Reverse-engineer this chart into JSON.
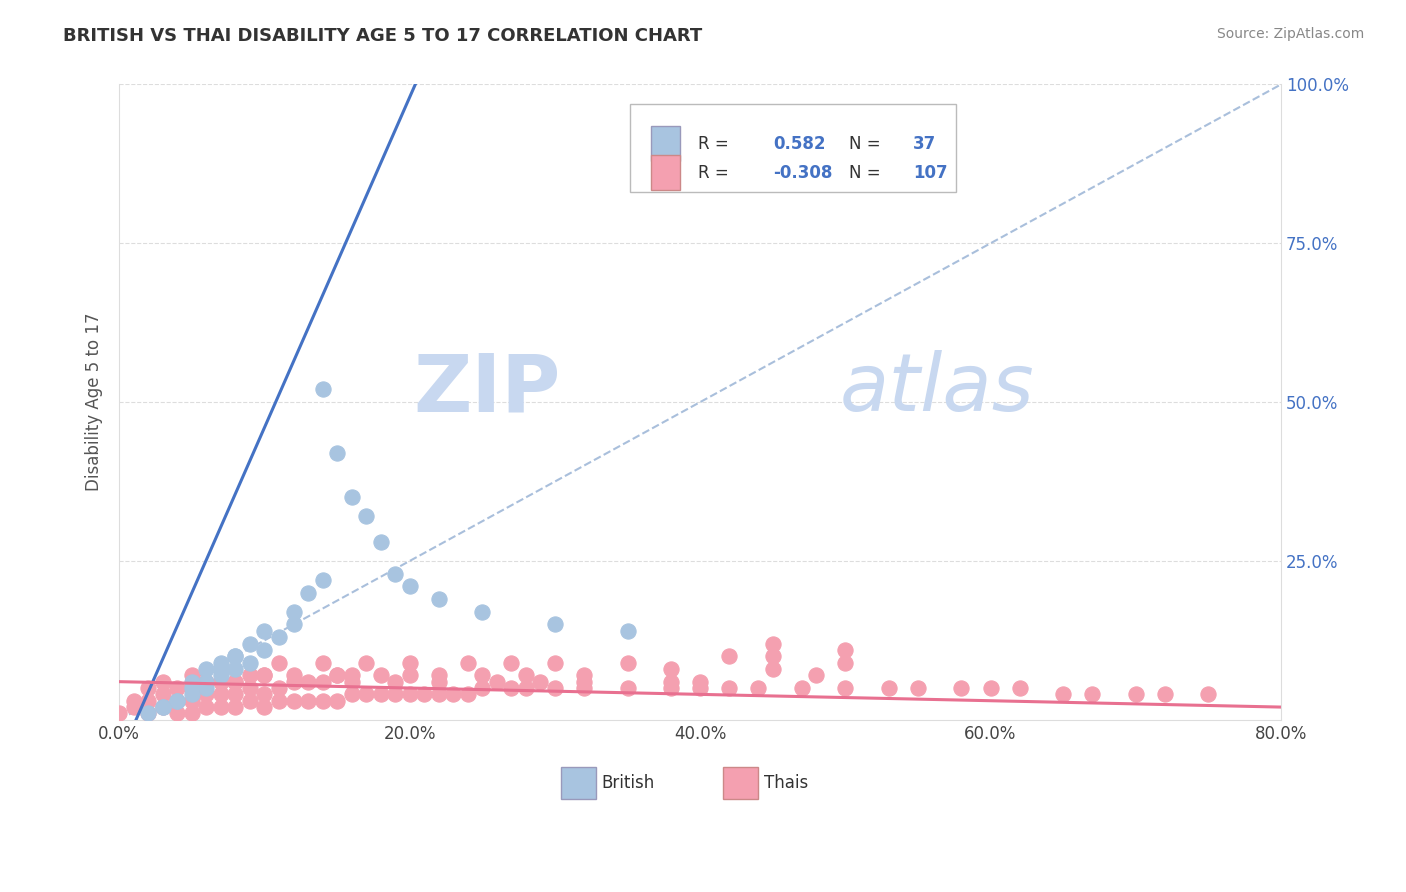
{
  "title": "BRITISH VS THAI DISABILITY AGE 5 TO 17 CORRELATION CHART",
  "source_text": "Source: ZipAtlas.com",
  "ylabel": "Disability Age 5 to 17",
  "xlim": [
    0.0,
    0.8
  ],
  "ylim": [
    0.0,
    1.0
  ],
  "xtick_labels": [
    "0.0%",
    "20.0%",
    "40.0%",
    "60.0%",
    "80.0%"
  ],
  "xtick_vals": [
    0.0,
    0.2,
    0.4,
    0.6,
    0.8
  ],
  "ytick_labels": [
    "25.0%",
    "50.0%",
    "75.0%",
    "100.0%"
  ],
  "ytick_vals": [
    0.25,
    0.5,
    0.75,
    1.0
  ],
  "british_R": "0.582",
  "british_N": "37",
  "thai_R": "-0.308",
  "thai_N": "107",
  "british_color": "#a8c4e0",
  "thai_color": "#f4a0b0",
  "british_line_color": "#4472c4",
  "thai_line_color": "#e87090",
  "ref_line_color": "#a0b8d8",
  "watermark_zip_color": "#c8d8f0",
  "watermark_atlas_color": "#c8d8f0",
  "legend_british_label": "British",
  "legend_thai_label": "Thais",
  "british_scatter_x": [
    0.02,
    0.03,
    0.04,
    0.05,
    0.05,
    0.06,
    0.06,
    0.07,
    0.07,
    0.08,
    0.08,
    0.09,
    0.09,
    0.1,
    0.1,
    0.11,
    0.12,
    0.12,
    0.13,
    0.14,
    0.15,
    0.16,
    0.17,
    0.18,
    0.19,
    0.2,
    0.22,
    0.25,
    0.3,
    0.35,
    0.03,
    0.04,
    0.05,
    0.06,
    0.07,
    0.08,
    0.14
  ],
  "british_scatter_y": [
    0.01,
    0.02,
    0.03,
    0.04,
    0.06,
    0.05,
    0.08,
    0.07,
    0.09,
    0.08,
    0.1,
    0.09,
    0.12,
    0.11,
    0.14,
    0.13,
    0.15,
    0.17,
    0.2,
    0.22,
    0.42,
    0.35,
    0.32,
    0.28,
    0.23,
    0.21,
    0.19,
    0.17,
    0.15,
    0.14,
    0.02,
    0.03,
    0.05,
    0.06,
    0.08,
    0.1,
    0.52
  ],
  "thai_scatter_x": [
    0.0,
    0.01,
    0.01,
    0.02,
    0.02,
    0.02,
    0.03,
    0.03,
    0.03,
    0.04,
    0.04,
    0.04,
    0.05,
    0.05,
    0.05,
    0.05,
    0.06,
    0.06,
    0.06,
    0.07,
    0.07,
    0.07,
    0.08,
    0.08,
    0.08,
    0.09,
    0.09,
    0.1,
    0.1,
    0.1,
    0.11,
    0.11,
    0.12,
    0.12,
    0.13,
    0.13,
    0.14,
    0.14,
    0.15,
    0.15,
    0.16,
    0.16,
    0.17,
    0.18,
    0.19,
    0.2,
    0.2,
    0.21,
    0.22,
    0.23,
    0.24,
    0.25,
    0.27,
    0.28,
    0.3,
    0.32,
    0.35,
    0.38,
    0.4,
    0.42,
    0.44,
    0.45,
    0.47,
    0.5,
    0.53,
    0.55,
    0.58,
    0.6,
    0.62,
    0.65,
    0.67,
    0.7,
    0.72,
    0.75,
    0.38,
    0.42,
    0.45,
    0.48,
    0.5,
    0.4,
    0.45,
    0.5,
    0.32,
    0.35,
    0.38,
    0.28,
    0.3,
    0.32,
    0.25,
    0.27,
    0.29,
    0.22,
    0.24,
    0.26,
    0.18,
    0.2,
    0.22,
    0.15,
    0.17,
    0.19,
    0.12,
    0.14,
    0.16,
    0.1,
    0.11,
    0.08,
    0.09
  ],
  "thai_scatter_y": [
    0.01,
    0.02,
    0.03,
    0.01,
    0.03,
    0.05,
    0.02,
    0.04,
    0.06,
    0.01,
    0.03,
    0.05,
    0.01,
    0.03,
    0.05,
    0.07,
    0.02,
    0.04,
    0.06,
    0.02,
    0.04,
    0.06,
    0.02,
    0.04,
    0.06,
    0.03,
    0.05,
    0.02,
    0.04,
    0.07,
    0.03,
    0.05,
    0.03,
    0.06,
    0.03,
    0.06,
    0.03,
    0.06,
    0.03,
    0.07,
    0.04,
    0.07,
    0.04,
    0.04,
    0.04,
    0.04,
    0.07,
    0.04,
    0.04,
    0.04,
    0.04,
    0.05,
    0.05,
    0.05,
    0.05,
    0.05,
    0.05,
    0.05,
    0.05,
    0.05,
    0.05,
    0.1,
    0.05,
    0.05,
    0.05,
    0.05,
    0.05,
    0.05,
    0.05,
    0.04,
    0.04,
    0.04,
    0.04,
    0.04,
    0.08,
    0.1,
    0.12,
    0.07,
    0.09,
    0.06,
    0.08,
    0.11,
    0.07,
    0.09,
    0.06,
    0.07,
    0.09,
    0.06,
    0.07,
    0.09,
    0.06,
    0.07,
    0.09,
    0.06,
    0.07,
    0.09,
    0.06,
    0.07,
    0.09,
    0.06,
    0.07,
    0.09,
    0.06,
    0.07,
    0.09,
    0.06,
    0.07
  ]
}
